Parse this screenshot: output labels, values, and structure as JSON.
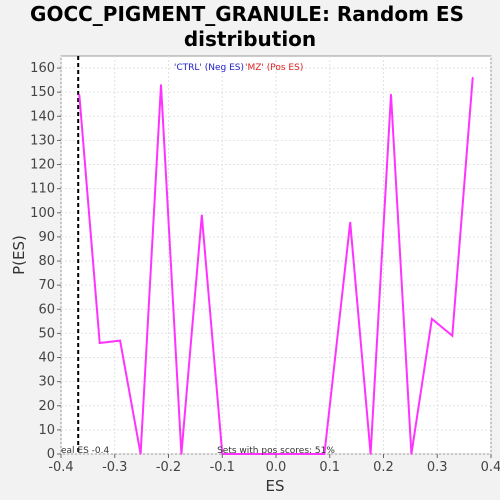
{
  "chart_data": {
    "type": "line",
    "title_lines": [
      "GOCC_PIGMENT_GRANULE: Random ES",
      "distribution"
    ],
    "xlabel": "ES",
    "ylabel": "P(ES)",
    "xlim": [
      -0.4,
      0.4
    ],
    "ylim": [
      0,
      165
    ],
    "xticks": [
      -0.4,
      -0.3,
      -0.2,
      -0.1,
      0.0,
      0.1,
      0.2,
      0.3,
      0.4
    ],
    "xtick_labels": [
      "-0.4",
      "-0.3",
      "-0.2",
      "-0.1",
      "0.0",
      "0.1",
      "0.2",
      "0.3",
      "0.4"
    ],
    "yticks": [
      0,
      10,
      20,
      30,
      40,
      50,
      60,
      70,
      80,
      90,
      100,
      110,
      120,
      130,
      140,
      150,
      160
    ],
    "ytick_labels": [
      "0",
      "10",
      "20",
      "30",
      "40",
      "50",
      "60",
      "70",
      "80",
      "90",
      "100",
      "110",
      "120",
      "130",
      "140",
      "150",
      "160"
    ],
    "grid": true,
    "series": [
      {
        "color": "#ff33ff",
        "x": [
          -0.366,
          -0.328,
          -0.29,
          -0.252,
          -0.214,
          -0.176,
          -0.138,
          -0.1,
          -0.062,
          -0.024,
          0.014,
          0.052,
          0.09,
          0.138,
          0.176,
          0.214,
          0.252,
          0.29,
          0.328,
          0.366
        ],
        "y": [
          149,
          46,
          47,
          0,
          153,
          0,
          99,
          0,
          0,
          0,
          0,
          0,
          0,
          96,
          0,
          149,
          0,
          56,
          49,
          156
        ]
      }
    ],
    "observed_es": -0.368,
    "observed_es_style": "dashed",
    "legend": {
      "placement": "top-center",
      "neg_label": "'CTRL' (Neg ES)",
      "neg_color": "#2222cc",
      "pos_label": "'MZ' (Pos ES)",
      "pos_color": "#dd2222"
    },
    "annotations": {
      "left_bottom": "eal ES -0.4",
      "center_bottom": "Sets with pos scores: 51%"
    }
  }
}
